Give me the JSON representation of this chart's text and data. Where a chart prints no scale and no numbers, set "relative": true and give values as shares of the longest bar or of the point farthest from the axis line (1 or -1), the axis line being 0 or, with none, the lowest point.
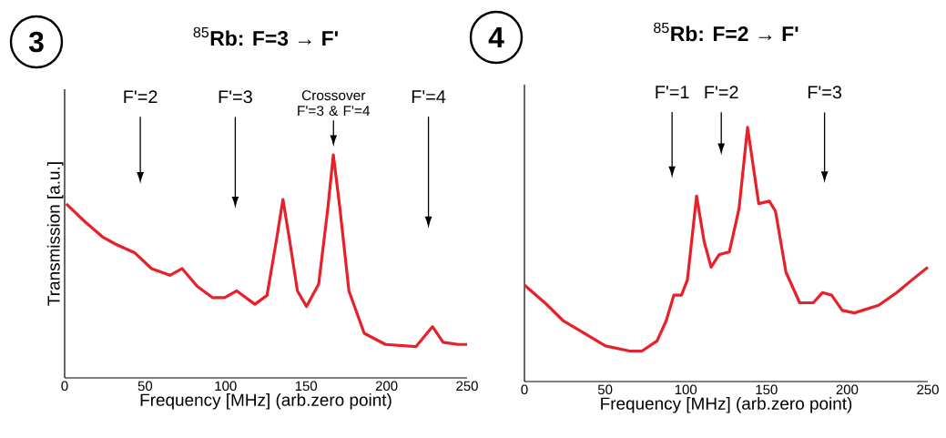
{
  "chart_data": [
    {
      "type": "line",
      "title": "$^{85}$**Rb: F=3 → F'**",
      "xlabel": "Frequency [MHz] (arb.zero point)",
      "ylabel": "Transmission [a.u.]",
      "relative": true,
      "xlim": [
        0,
        250
      ],
      "xticks": [
        0,
        50,
        100,
        150,
        200,
        250
      ],
      "x": [
        1,
        12.6,
        23.9,
        31.5,
        43.7,
        54,
        65.4,
        73,
        82.4,
        91.8,
        99.4,
        106.9,
        118.2,
        125.7,
        131.4,
        135.6,
        139.9,
        144.6,
        150.3,
        157.8,
        163.5,
        166.9,
        171,
        176.6,
        186.1,
        199.3,
        218.2,
        228.5,
        235.1,
        244.5,
        250
      ],
      "series": [
        {
          "color": "#e8202a",
          "values": [
            0.78,
            0.7,
            0.63,
            0.6,
            0.56,
            0.49,
            0.46,
            0.49,
            0.41,
            0.36,
            0.36,
            0.39,
            0.33,
            0.37,
            0.61,
            0.8,
            0.61,
            0.39,
            0.32,
            0.42,
            0.76,
            1.0,
            0.76,
            0.39,
            0.2,
            0.15,
            0.14,
            0.23,
            0.16,
            0.15,
            0.15
          ]
        }
      ],
      "annotations": [
        "3",
        "F'=2",
        "F'=3",
        "Crossover F'=3 & F'=4",
        "F'=4"
      ]
    },
    {
      "type": "line",
      "title": "$^{85}$**Rb: F=2 → F'**",
      "xlabel": "Frequency [MHz] (arb.zero point)",
      "relative": true,
      "xlim": [
        0,
        250
      ],
      "xticks": [
        0,
        50,
        100,
        150,
        200,
        250
      ],
      "x": [
        0,
        12.6,
        23.9,
        37,
        50.2,
        65.3,
        72.8,
        82.2,
        87.9,
        92.6,
        97.3,
        101,
        106.7,
        111.4,
        115.7,
        120.8,
        127,
        133,
        138.3,
        145.2,
        151.8,
        155.6,
        162.1,
        170.6,
        179,
        184.7,
        190.4,
        197,
        204.5,
        219.5,
        230.8,
        240.2,
        250
      ],
      "series": [
        {
          "color": "#e8202a",
          "values": [
            0.38,
            0.31,
            0.24,
            0.19,
            0.14,
            0.12,
            0.12,
            0.16,
            0.24,
            0.34,
            0.34,
            0.4,
            0.73,
            0.55,
            0.45,
            0.5,
            0.51,
            0.68,
            1.0,
            0.7,
            0.71,
            0.67,
            0.43,
            0.31,
            0.31,
            0.35,
            0.34,
            0.28,
            0.27,
            0.3,
            0.35,
            0.4,
            0.45
          ]
        }
      ],
      "annotations": [
        "4",
        "F'=1",
        "F'=2",
        "F'=3"
      ]
    }
  ]
}
